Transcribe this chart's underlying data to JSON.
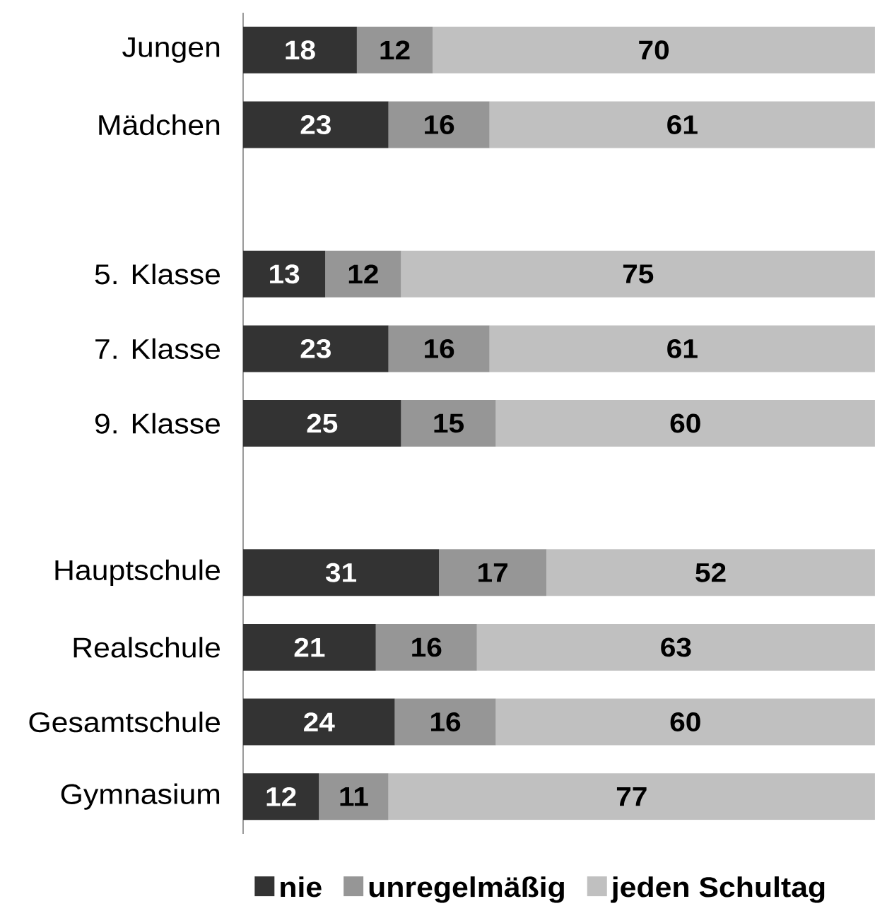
{
  "chart_data": {
    "type": "bar",
    "orientation": "horizontal",
    "stacked": true,
    "data_labels": true,
    "legend": "bottom",
    "categories": [
      "Jungen",
      "Mädchen",
      null,
      "5. Klasse",
      "7. Klasse",
      "9. Klasse",
      null,
      "Hauptschule",
      "Realschule",
      "Gesamtschule",
      "Gymnasium"
    ],
    "series": [
      {
        "name": "nie",
        "color": "#333333",
        "values": [
          18,
          23,
          null,
          13,
          23,
          25,
          null,
          31,
          21,
          24,
          12
        ]
      },
      {
        "name": "unregelmäßig",
        "color": "#969696",
        "values": [
          12,
          16,
          null,
          12,
          16,
          15,
          null,
          17,
          16,
          16,
          11
        ]
      },
      {
        "name": "jeden Schultag",
        "color": "#c0c0c0",
        "values": [
          70,
          61,
          null,
          75,
          61,
          60,
          null,
          52,
          63,
          60,
          77
        ]
      }
    ]
  }
}
